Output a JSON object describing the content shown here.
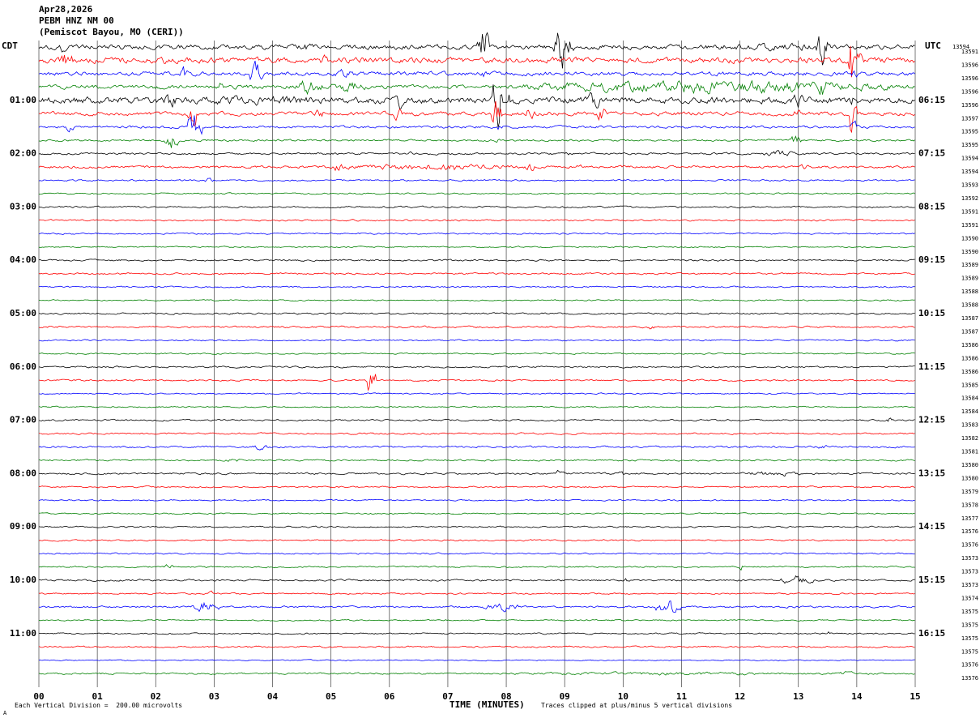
{
  "header": {
    "date": "Apr28,2026",
    "station": "PEBM HNZ NM 00",
    "location": "(Pemiscot Bayou, MO (CERI))",
    "left_tz": "CDT",
    "right_tz": "UTC",
    "top_right_number": "13594"
  },
  "footer": {
    "scale_note": "Each Vertical Division =  200.00 microvolts",
    "xaxis_title": "TIME (MINUTES)",
    "clip_note": "Traces clipped at plus/minus 5 vertical divisions",
    "corner_mark": "A"
  },
  "colors": {
    "background": "#ffffff",
    "grid": "#404040",
    "text": "#000000",
    "map": {
      "black": "#000000",
      "red": "#ff0000",
      "blue": "#0000ff",
      "green": "#008000"
    }
  },
  "axes": {
    "minute_labels": [
      "00",
      "01",
      "02",
      "03",
      "04",
      "05",
      "06",
      "07",
      "08",
      "09",
      "10",
      "11",
      "12",
      "13",
      "14",
      "15"
    ],
    "cdt_labels": [
      "01:00",
      "02:00",
      "03:00",
      "04:00",
      "05:00",
      "06:00",
      "07:00",
      "08:00",
      "09:00",
      "10:00",
      "11:00"
    ],
    "utc_labels": [
      "06:15",
      "07:15",
      "08:15",
      "09:15",
      "10:15",
      "11:15",
      "12:15",
      "13:15",
      "14:15",
      "15:15",
      "16:15"
    ],
    "right_numbers": [
      "13591",
      "13596",
      "13596",
      "13596",
      "13596",
      "13597",
      "13595",
      "13595",
      "13594",
      "13594",
      "13593",
      "13592",
      "13591",
      "13591",
      "13590",
      "13590",
      "13589",
      "13589",
      "13588",
      "13588",
      "13587",
      "13587",
      "13586",
      "13586",
      "13586",
      "13585",
      "13584",
      "13584",
      "13583",
      "13582",
      "13581",
      "13580",
      "13580",
      "13579",
      "13578",
      "13577",
      "13576",
      "13576",
      "13573",
      "13573",
      "13573",
      "13574",
      "13575",
      "13575",
      "13575",
      "13575",
      "13576",
      "13576"
    ]
  },
  "chart_data": {
    "type": "line",
    "title": "PEBM HNZ NM 00 (Pemiscot Bayou, MO (CERI)) helicorder, Apr28,2026",
    "xlabel": "TIME (MINUTES)",
    "x_range": [
      0,
      15
    ],
    "minutes_per_line": 15,
    "lines_per_hour": 4,
    "clip_divisions": 5,
    "microvolts_per_division": 200.0,
    "traces": [
      {
        "cdt": "00:00",
        "color": "black",
        "base_amp": 2.5,
        "bursts": [
          [
            0.3,
            0.5,
            8
          ],
          [
            4.5,
            4.7,
            6
          ],
          [
            7.5,
            7.7,
            32
          ],
          [
            8.8,
            9.0,
            42
          ],
          [
            9.0,
            9.15,
            15
          ],
          [
            10.0,
            15,
            4
          ],
          [
            13.3,
            13.5,
            25
          ]
        ]
      },
      {
        "cdt": "00:15",
        "color": "red",
        "base_amp": 3.0,
        "bursts": [
          [
            0.35,
            0.6,
            12
          ],
          [
            2.0,
            2.2,
            6
          ],
          [
            4.8,
            5.0,
            8
          ],
          [
            13.85,
            13.98,
            42
          ],
          [
            14.0,
            14.15,
            18
          ]
        ]
      },
      {
        "cdt": "00:30",
        "color": "blue",
        "base_amp": 2.2,
        "bursts": [
          [
            2.4,
            2.55,
            8
          ],
          [
            3.6,
            3.85,
            16
          ],
          [
            5.0,
            5.4,
            6
          ],
          [
            7.5,
            7.7,
            5
          ],
          [
            13.9,
            14.05,
            7
          ]
        ]
      },
      {
        "cdt": "00:45",
        "color": "green",
        "base_amp": 2.2,
        "bursts": [
          [
            3.0,
            3.2,
            6
          ],
          [
            4.4,
            4.85,
            9
          ],
          [
            5.0,
            5.6,
            7
          ],
          [
            8.2,
            14.6,
            8
          ],
          [
            13.3,
            13.5,
            14
          ]
        ]
      },
      {
        "cdt": "01:00",
        "color": "black",
        "base_amp": 3.5,
        "bursts": [
          [
            0,
            8,
            5
          ],
          [
            2.15,
            2.35,
            12
          ],
          [
            6.1,
            6.25,
            10
          ],
          [
            7.75,
            7.95,
            35
          ],
          [
            8.0,
            8.15,
            12
          ],
          [
            9.4,
            9.6,
            14
          ],
          [
            12.9,
            13.1,
            10
          ],
          [
            13.85,
            14.0,
            8
          ]
        ]
      },
      {
        "cdt": "01:15",
        "color": "red",
        "base_amp": 2.0,
        "bursts": [
          [
            2.55,
            2.75,
            16
          ],
          [
            4.7,
            4.9,
            8
          ],
          [
            6.05,
            6.2,
            10
          ],
          [
            7.75,
            7.95,
            22
          ],
          [
            8.3,
            8.5,
            8
          ],
          [
            9.55,
            9.7,
            12
          ],
          [
            12.9,
            13.05,
            6
          ],
          [
            13.88,
            14.0,
            30
          ]
        ]
      },
      {
        "cdt": "01:30",
        "color": "blue",
        "base_amp": 1.3,
        "bursts": [
          [
            0.45,
            0.6,
            8
          ],
          [
            2.55,
            2.8,
            20
          ],
          [
            7.8,
            7.95,
            4
          ],
          [
            13.9,
            14.05,
            5
          ]
        ]
      },
      {
        "cdt": "01:45",
        "color": "green",
        "base_amp": 1.1,
        "bursts": [
          [
            2.15,
            2.4,
            11
          ],
          [
            7.8,
            7.9,
            3
          ],
          [
            12.85,
            13.05,
            7
          ]
        ]
      },
      {
        "cdt": "02:00",
        "color": "black",
        "base_amp": 1.1,
        "bursts": [
          [
            6.3,
            6.45,
            3
          ],
          [
            9.0,
            9.1,
            3
          ],
          [
            12.4,
            12.95,
            4
          ]
        ]
      },
      {
        "cdt": "02:15",
        "color": "red",
        "base_amp": 1.4,
        "bursts": [
          [
            4.6,
            8.6,
            3.5
          ],
          [
            5.0,
            5.25,
            6
          ],
          [
            7.0,
            7.2,
            5
          ],
          [
            8.3,
            8.5,
            6
          ],
          [
            9.2,
            9.35,
            4
          ],
          [
            13.0,
            13.2,
            4
          ]
        ]
      },
      {
        "cdt": "02:30",
        "color": "blue",
        "base_amp": 0.9,
        "bursts": [
          [
            2.8,
            3.0,
            3
          ]
        ]
      },
      {
        "cdt": "02:45",
        "color": "green",
        "base_amp": 0.8,
        "bursts": []
      },
      {
        "cdt": "03:00",
        "color": "black",
        "base_amp": 0.9,
        "bursts": []
      },
      {
        "cdt": "03:15",
        "color": "red",
        "base_amp": 0.9,
        "bursts": []
      },
      {
        "cdt": "03:30",
        "color": "blue",
        "base_amp": 0.8,
        "bursts": []
      },
      {
        "cdt": "03:45",
        "color": "green",
        "base_amp": 0.7,
        "bursts": []
      },
      {
        "cdt": "04:00",
        "color": "black",
        "base_amp": 0.9,
        "bursts": [
          [
            6.4,
            6.5,
            2
          ]
        ]
      },
      {
        "cdt": "04:15",
        "color": "red",
        "base_amp": 0.9,
        "bursts": []
      },
      {
        "cdt": "04:30",
        "color": "blue",
        "base_amp": 0.8,
        "bursts": []
      },
      {
        "cdt": "04:45",
        "color": "green",
        "base_amp": 0.7,
        "bursts": []
      },
      {
        "cdt": "05:00",
        "color": "black",
        "base_amp": 0.9,
        "bursts": []
      },
      {
        "cdt": "05:15",
        "color": "red",
        "base_amp": 1.0,
        "bursts": [
          [
            10.4,
            10.55,
            3
          ]
        ]
      },
      {
        "cdt": "05:30",
        "color": "blue",
        "base_amp": 0.8,
        "bursts": []
      },
      {
        "cdt": "05:45",
        "color": "green",
        "base_amp": 0.7,
        "bursts": []
      },
      {
        "cdt": "06:00",
        "color": "black",
        "base_amp": 0.9,
        "bursts": []
      },
      {
        "cdt": "06:15",
        "color": "red",
        "base_amp": 0.9,
        "bursts": [
          [
            5.58,
            5.78,
            18
          ]
        ]
      },
      {
        "cdt": "06:30",
        "color": "blue",
        "base_amp": 0.7,
        "bursts": []
      },
      {
        "cdt": "06:45",
        "color": "green",
        "base_amp": 0.7,
        "bursts": []
      },
      {
        "cdt": "07:00",
        "color": "black",
        "base_amp": 0.9,
        "bursts": [
          [
            14.5,
            14.62,
            4
          ]
        ]
      },
      {
        "cdt": "07:15",
        "color": "red",
        "base_amp": 0.9,
        "bursts": []
      },
      {
        "cdt": "07:30",
        "color": "blue",
        "base_amp": 1.0,
        "bursts": [
          [
            3.6,
            3.95,
            3
          ],
          [
            13.3,
            13.55,
            2.5
          ]
        ]
      },
      {
        "cdt": "07:45",
        "color": "green",
        "base_amp": 0.9,
        "bursts": [
          [
            3.2,
            3.5,
            2.5
          ]
        ]
      },
      {
        "cdt": "08:00",
        "color": "black",
        "base_amp": 1.0,
        "bursts": [
          [
            8.85,
            9.0,
            5
          ],
          [
            9.9,
            10.05,
            3
          ],
          [
            12.0,
            13.2,
            3
          ]
        ]
      },
      {
        "cdt": "08:15",
        "color": "red",
        "base_amp": 0.8,
        "bursts": []
      },
      {
        "cdt": "08:30",
        "color": "blue",
        "base_amp": 0.7,
        "bursts": []
      },
      {
        "cdt": "08:45",
        "color": "green",
        "base_amp": 0.7,
        "bursts": []
      },
      {
        "cdt": "09:00",
        "color": "black",
        "base_amp": 0.8,
        "bursts": []
      },
      {
        "cdt": "09:15",
        "color": "red",
        "base_amp": 0.8,
        "bursts": []
      },
      {
        "cdt": "09:30",
        "color": "blue",
        "base_amp": 0.8,
        "bursts": []
      },
      {
        "cdt": "09:45",
        "color": "green",
        "base_amp": 0.8,
        "bursts": [
          [
            2.15,
            2.3,
            4
          ],
          [
            11.95,
            12.1,
            4
          ]
        ]
      },
      {
        "cdt": "10:00",
        "color": "black",
        "base_amp": 1.0,
        "bursts": [
          [
            10.0,
            10.12,
            3
          ],
          [
            12.7,
            13.25,
            6
          ]
        ]
      },
      {
        "cdt": "10:15",
        "color": "red",
        "base_amp": 0.8,
        "bursts": [
          [
            2.85,
            3.05,
            3
          ]
        ]
      },
      {
        "cdt": "10:30",
        "color": "blue",
        "base_amp": 1.0,
        "bursts": [
          [
            2.6,
            3.1,
            7
          ],
          [
            7.6,
            8.25,
            5
          ],
          [
            10.55,
            11.0,
            8
          ]
        ]
      },
      {
        "cdt": "10:45",
        "color": "green",
        "base_amp": 0.7,
        "bursts": []
      },
      {
        "cdt": "11:00",
        "color": "black",
        "base_amp": 0.8,
        "bursts": [
          [
            13.5,
            13.6,
            4
          ]
        ]
      },
      {
        "cdt": "11:15",
        "color": "red",
        "base_amp": 0.9,
        "bursts": []
      },
      {
        "cdt": "11:30",
        "color": "blue",
        "base_amp": 0.6,
        "bursts": []
      },
      {
        "cdt": "11:45",
        "color": "green",
        "base_amp": 0.9,
        "bursts": [
          [
            7.0,
            14.5,
            1.8
          ],
          [
            13.7,
            13.95,
            3.5
          ]
        ]
      }
    ]
  }
}
